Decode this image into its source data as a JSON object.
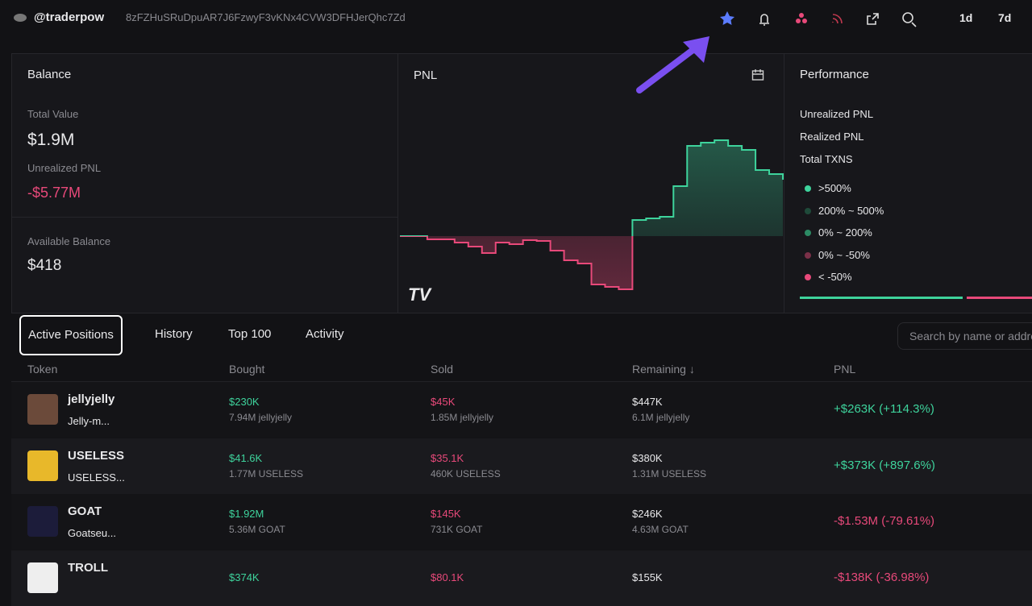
{
  "header": {
    "handle": "@traderpow",
    "address": "8zFZHuSRuDpuAR7J6FzwyF3vKNx4CVW3DFHJerQhc7Zd",
    "timeframes": [
      "1d",
      "7d"
    ]
  },
  "balance": {
    "title": "Balance",
    "total_value_label": "Total Value",
    "total_value": "$1.9M",
    "unrealized_label": "Unrealized PNL",
    "unrealized": "-$5.77M",
    "available_label": "Available Balance",
    "available": "$418"
  },
  "pnl": {
    "title": "PNL",
    "values": [
      0,
      0,
      -4,
      -4,
      -8,
      -13,
      -21,
      -8,
      -10,
      -5,
      -6,
      -18,
      -30,
      -34,
      -60,
      -63,
      -66,
      20,
      22,
      24,
      62,
      112,
      116,
      119,
      112,
      107,
      82,
      77,
      70
    ]
  },
  "performance": {
    "title": "Performance",
    "rows": [
      "Unrealized PNL",
      "Realized PNL",
      "Total TXNS"
    ],
    "buckets": [
      {
        "label": ">500%",
        "color": "#3ed39c"
      },
      {
        "label": "200% ~ 500%",
        "color": "#1f4a3a"
      },
      {
        "label": "0% ~ 200%",
        "color": "#2c8a64"
      },
      {
        "label": "0% ~ -50%",
        "color": "#7a3048"
      },
      {
        "label": "< -50%",
        "color": "#e8497a"
      }
    ]
  },
  "tabs": [
    "Active Positions",
    "History",
    "Top 100",
    "Activity"
  ],
  "search_placeholder": "Search by name or address",
  "table": {
    "columns": [
      "Token",
      "Bought",
      "Sold",
      "Remaining ↓",
      "PNL"
    ],
    "rows": [
      {
        "name": "jellyjelly",
        "sub": "Jelly-m...",
        "bought": "$230K",
        "bought_amount": "7.94M jellyjelly",
        "sold": "$45K",
        "sold_amount": "1.85M jellyjelly",
        "remaining": "$447K",
        "remaining_amount": "6.1M jellyjelly",
        "pnl": "+$263K (+114.3%)"
      },
      {
        "name": "USELESS",
        "sub": "USELESS...",
        "bought": "$41.6K",
        "bought_amount": "1.77M USELESS",
        "sold": "$35.1K",
        "sold_amount": "460K USELESS",
        "remaining": "$380K",
        "remaining_amount": "1.31M USELESS",
        "pnl": "+$373K (+897.6%)"
      },
      {
        "name": "GOAT",
        "sub": "Goatseu...",
        "bought": "$1.92M",
        "bought_amount": "5.36M GOAT",
        "sold": "$145K",
        "sold_amount": "731K GOAT",
        "remaining": "$246K",
        "remaining_amount": "4.63M GOAT",
        "pnl": "-$1.53M (-79.61%)"
      },
      {
        "name": "TROLL",
        "bought": "$374K",
        "sold": "$80.1K",
        "remaining": "$155K",
        "pnl": "-$138K (-36.98%)"
      }
    ]
  }
}
